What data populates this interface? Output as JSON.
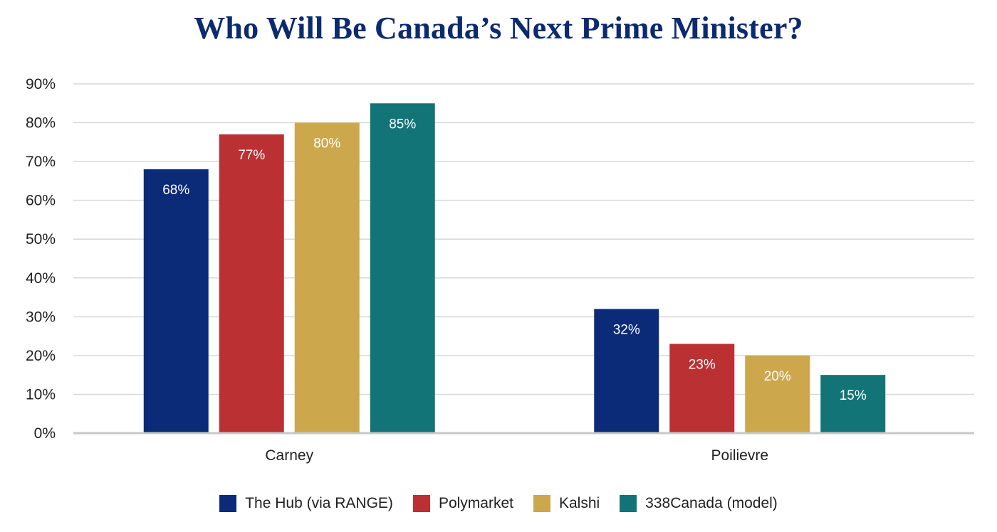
{
  "chart_data": {
    "type": "bar",
    "title": "Who Will Be Canada’s Next Prime Minister?",
    "xlabel": "",
    "ylabel": "",
    "categories": [
      "Carney",
      "Poilievre"
    ],
    "series": [
      {
        "name": "The Hub (via RANGE)",
        "color": "#0b2a78",
        "values": [
          68,
          32
        ],
        "labels": [
          "68%",
          "32%"
        ]
      },
      {
        "name": "Polymarket",
        "color": "#bb3033",
        "values": [
          77,
          23
        ],
        "labels": [
          "77%",
          "23%"
        ]
      },
      {
        "name": "Kalshi",
        "color": "#cda74c",
        "values": [
          80,
          20
        ],
        "labels": [
          "80%",
          "20%"
        ]
      },
      {
        "name": "338Canada (model)",
        "color": "#137478",
        "values": [
          85,
          15
        ],
        "labels": [
          "85%",
          "15%"
        ]
      }
    ],
    "ylim": [
      0,
      90
    ],
    "yticks": [
      0,
      10,
      20,
      30,
      40,
      50,
      60,
      70,
      80,
      90
    ],
    "ytick_labels": [
      "0%",
      "10%",
      "20%",
      "30%",
      "40%",
      "50%",
      "60%",
      "70%",
      "80%",
      "90%"
    ],
    "grid": true,
    "legend_position": "bottom"
  }
}
